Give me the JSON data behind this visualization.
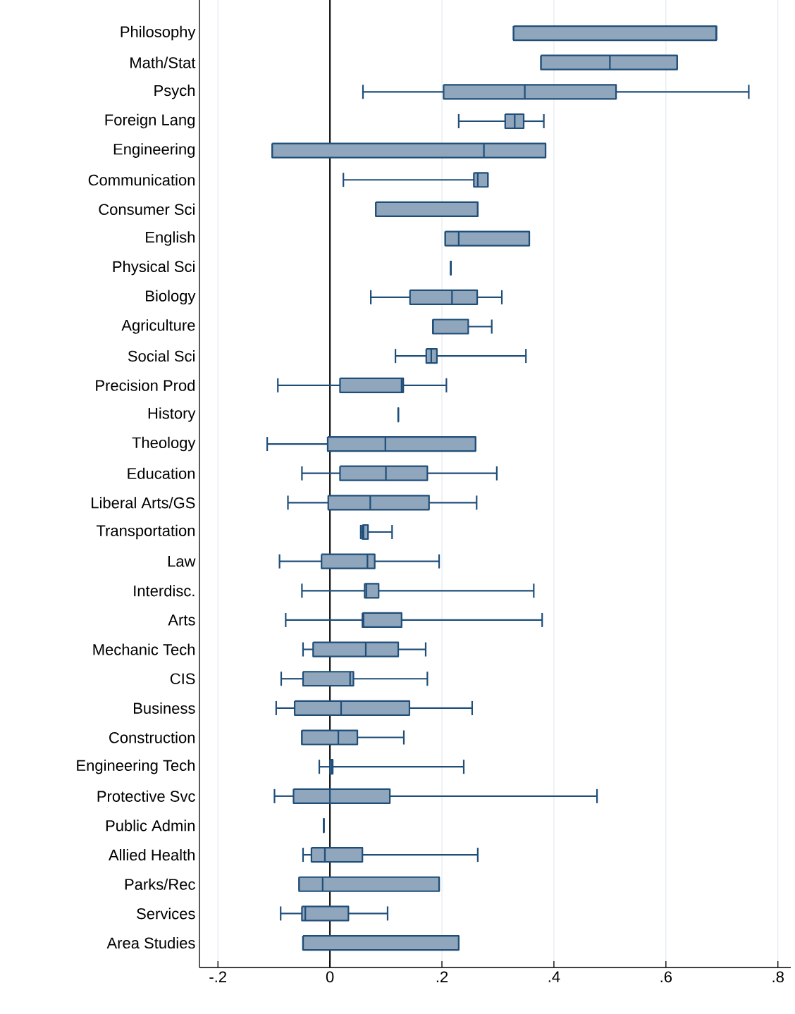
{
  "chart_data": {
    "type": "box",
    "orientation": "horizontal",
    "color": "#1f4e79",
    "categories": [
      "Philosophy",
      "Math/Stat",
      "Psych",
      "Foreign Lang",
      "Engineering",
      "Communication",
      "Consumer Sci",
      "English",
      "Physical Sci",
      "Biology",
      "Agriculture",
      "Social Sci",
      "Precision Prod",
      "History",
      "Theology",
      "Education",
      "Liberal Arts/GS",
      "Transportation",
      "Law",
      "Interdisc.",
      "Arts",
      "Mechanic Tech",
      "CIS",
      "Business",
      "Construction",
      "Engineering Tech",
      "Protective Svc",
      "Public Admin",
      "Allied Health",
      "Parks/Rec",
      "Services",
      "Area Studies"
    ],
    "boxes": [
      {
        "low": 0.328,
        "q1": 0.328,
        "median": 0.69,
        "q3": 0.69,
        "high": 0.69
      },
      {
        "low": 0.377,
        "q1": 0.377,
        "median": 0.5,
        "q3": 0.62,
        "high": 0.62
      },
      {
        "low": 0.059,
        "q1": 0.203,
        "median": 0.348,
        "q3": 0.511,
        "high": 0.748
      },
      {
        "low": 0.23,
        "q1": 0.313,
        "median": 0.33,
        "q3": 0.346,
        "high": 0.382
      },
      {
        "low": -0.103,
        "q1": -0.103,
        "median": 0.275,
        "q3": 0.385,
        "high": 0.385
      },
      {
        "low": 0.024,
        "q1": 0.257,
        "median": 0.264,
        "q3": 0.282,
        "high": 0.282
      },
      {
        "low": 0.082,
        "q1": 0.082,
        "median": 0.264,
        "q3": 0.264,
        "high": 0.264
      },
      {
        "low": 0.206,
        "q1": 0.206,
        "median": 0.23,
        "q3": 0.356,
        "high": 0.356
      },
      {
        "low": 0.216,
        "q1": 0.216,
        "median": 0.216,
        "q3": 0.216,
        "high": 0.216
      },
      {
        "low": 0.073,
        "q1": 0.143,
        "median": 0.218,
        "q3": 0.263,
        "high": 0.307
      },
      {
        "low": 0.184,
        "q1": 0.184,
        "median": 0.184,
        "q3": 0.247,
        "high": 0.289
      },
      {
        "low": 0.117,
        "q1": 0.172,
        "median": 0.181,
        "q3": 0.191,
        "high": 0.35
      },
      {
        "low": -0.093,
        "q1": 0.018,
        "median": 0.128,
        "q3": 0.131,
        "high": 0.208
      },
      {
        "low": 0.122,
        "q1": 0.122,
        "median": 0.122,
        "q3": 0.122,
        "high": 0.122
      },
      {
        "low": -0.112,
        "q1": -0.004,
        "median": 0.099,
        "q3": 0.26,
        "high": 0.26
      },
      {
        "low": -0.05,
        "q1": 0.018,
        "median": 0.1,
        "q3": 0.174,
        "high": 0.298
      },
      {
        "low": -0.075,
        "q1": -0.003,
        "median": 0.072,
        "q3": 0.177,
        "high": 0.262
      },
      {
        "low": 0.055,
        "q1": 0.058,
        "median": 0.06,
        "q3": 0.068,
        "high": 0.111
      },
      {
        "low": -0.09,
        "q1": -0.015,
        "median": 0.067,
        "q3": 0.08,
        "high": 0.195
      },
      {
        "low": -0.05,
        "q1": 0.062,
        "median": 0.065,
        "q3": 0.087,
        "high": 0.364
      },
      {
        "low": -0.079,
        "q1": 0.058,
        "median": 0.06,
        "q3": 0.128,
        "high": 0.379
      },
      {
        "low": -0.048,
        "q1": -0.03,
        "median": 0.064,
        "q3": 0.122,
        "high": 0.171
      },
      {
        "low": -0.087,
        "q1": -0.048,
        "median": 0.036,
        "q3": 0.042,
        "high": 0.174
      },
      {
        "low": -0.096,
        "q1": -0.063,
        "median": 0.02,
        "q3": 0.142,
        "high": 0.254
      },
      {
        "low": -0.05,
        "q1": -0.05,
        "median": 0.015,
        "q3": 0.049,
        "high": 0.132
      },
      {
        "low": -0.019,
        "q1": 0.0,
        "median": 0.003,
        "q3": 0.005,
        "high": 0.239
      },
      {
        "low": -0.099,
        "q1": -0.065,
        "median": 0.0,
        "q3": 0.107,
        "high": 0.477
      },
      {
        "low": -0.011,
        "q1": -0.011,
        "median": -0.011,
        "q3": -0.011,
        "high": -0.011
      },
      {
        "low": -0.048,
        "q1": -0.033,
        "median": -0.009,
        "q3": 0.058,
        "high": 0.264
      },
      {
        "low": -0.055,
        "q1": -0.055,
        "median": -0.013,
        "q3": 0.195,
        "high": 0.195
      },
      {
        "low": -0.088,
        "q1": -0.05,
        "median": -0.044,
        "q3": 0.033,
        "high": 0.103
      },
      {
        "low": -0.048,
        "q1": -0.048,
        "median": -0.048,
        "q3": 0.23,
        "high": 0.23
      }
    ],
    "xlim": [
      -0.233,
      0.823
    ],
    "xticks": [
      {
        "value": -0.2,
        "label": "-.2"
      },
      {
        "value": 0,
        "label": "0"
      },
      {
        "value": 0.2,
        "label": ".2"
      },
      {
        "value": 0.4,
        "label": ".4"
      },
      {
        "value": 0.6,
        "label": ".6"
      },
      {
        "value": 0.8,
        "label": ".8"
      }
    ],
    "grid": "x",
    "ref_lines": [
      {
        "axis": "x",
        "value": 0,
        "color": "#000000"
      }
    ]
  }
}
